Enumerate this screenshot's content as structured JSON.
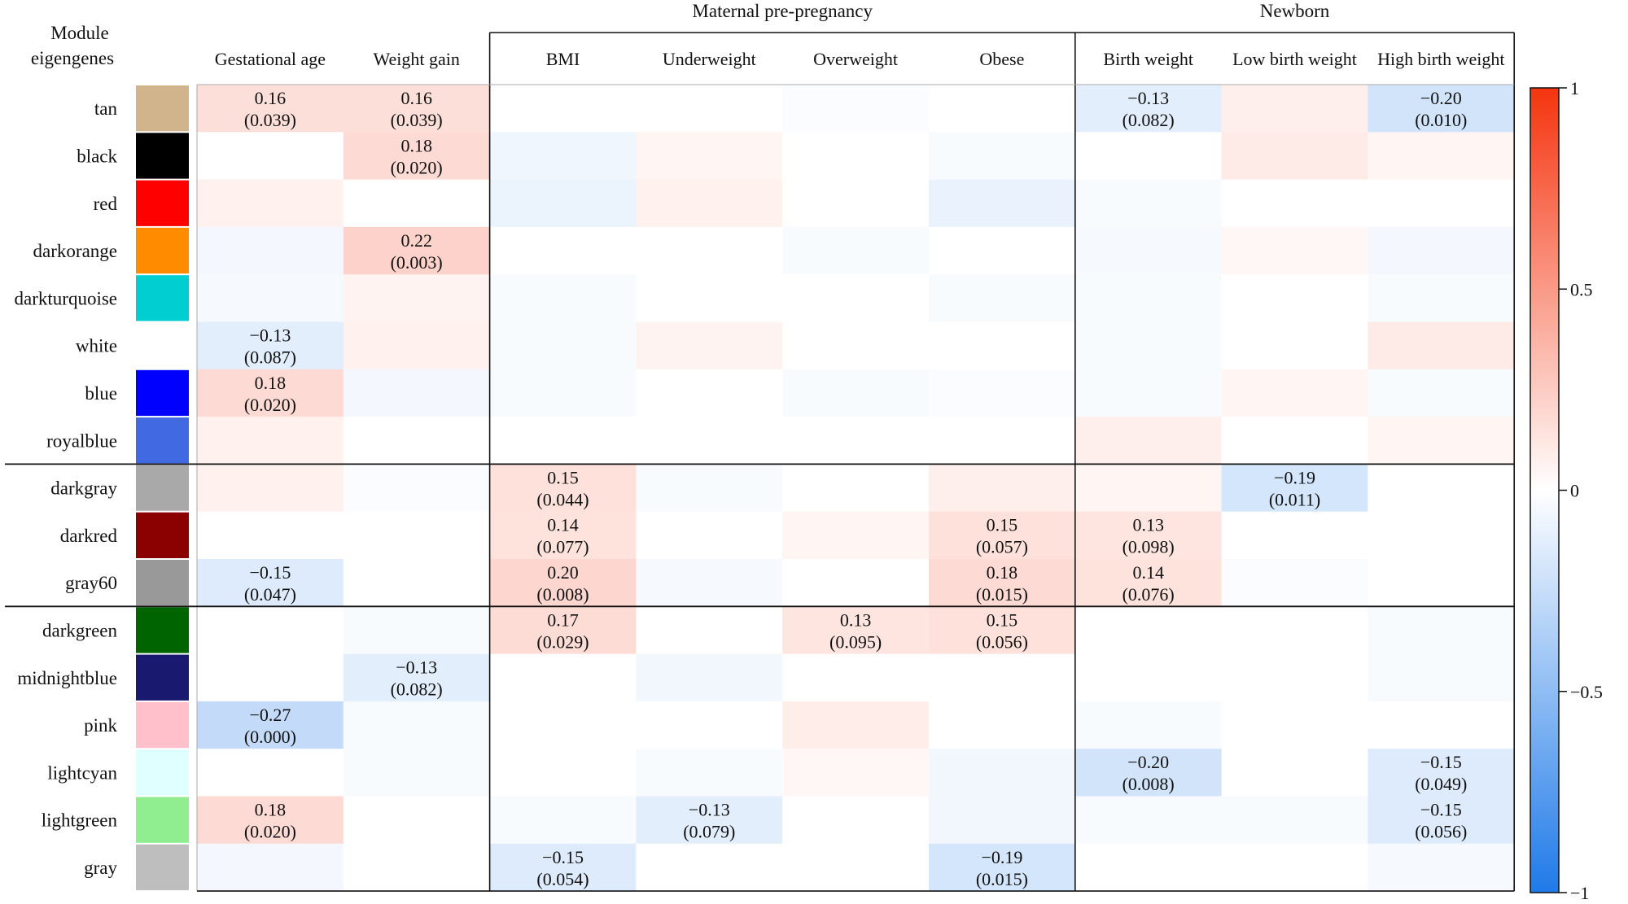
{
  "chart_data": {
    "type": "heatmap",
    "y_header": "Module eigengenes",
    "column_groups": [
      {
        "label": "",
        "start": 0,
        "end": 1
      },
      {
        "label": "Maternal pre-pregnancy",
        "start": 2,
        "end": 5
      },
      {
        "label": "Newborn",
        "start": 6,
        "end": 8
      }
    ],
    "columns": [
      "Gestational age",
      "Weight gain",
      "BMI",
      "Underweight",
      "Overweight",
      "Obese",
      "Birth weight",
      "Low birth weight",
      "High birth weight"
    ],
    "row_group_breaks": [
      8,
      11
    ],
    "rows": [
      {
        "label": "tan",
        "color": "#d2b48c",
        "values": [
          0.16,
          0.16,
          0.0,
          0.0,
          -0.02,
          0.0,
          -0.13,
          0.08,
          -0.2
        ]
      },
      {
        "label": "black",
        "color": "#000000",
        "values": [
          0.0,
          0.18,
          -0.07,
          0.05,
          0.0,
          -0.03,
          0.0,
          0.1,
          0.05
        ]
      },
      {
        "label": "red",
        "color": "#ff0000",
        "values": [
          0.07,
          0.0,
          -0.09,
          0.07,
          0.0,
          -0.1,
          -0.03,
          0.0,
          0.0
        ]
      },
      {
        "label": "darkorange",
        "color": "#ff8c00",
        "values": [
          -0.05,
          0.22,
          0.0,
          0.0,
          -0.03,
          0.0,
          -0.04,
          0.04,
          -0.05
        ]
      },
      {
        "label": "darkturquoise",
        "color": "#00ced1",
        "values": [
          -0.04,
          0.06,
          -0.03,
          0.0,
          0.0,
          -0.03,
          -0.03,
          0.0,
          -0.03
        ]
      },
      {
        "label": "white",
        "color": "#ffffff",
        "values": [
          -0.13,
          0.07,
          -0.03,
          0.06,
          0.0,
          0.0,
          -0.03,
          0.0,
          0.1
        ]
      },
      {
        "label": "blue",
        "color": "#0000ff",
        "values": [
          0.18,
          -0.05,
          -0.03,
          0.0,
          -0.03,
          -0.02,
          -0.03,
          0.05,
          -0.03
        ]
      },
      {
        "label": "royalblue",
        "color": "#4169e1",
        "values": [
          0.07,
          0.0,
          0.0,
          0.0,
          0.0,
          0.0,
          0.08,
          0.0,
          0.05
        ]
      },
      {
        "label": "darkgray",
        "color": "#a9a9a9",
        "values": [
          0.07,
          -0.02,
          0.15,
          -0.03,
          0.0,
          0.08,
          0.05,
          -0.19,
          0.0
        ]
      },
      {
        "label": "darkred",
        "color": "#8b0000",
        "values": [
          0.0,
          0.0,
          0.14,
          0.0,
          0.05,
          0.15,
          0.13,
          0.0,
          0.0
        ]
      },
      {
        "label": "gray60",
        "color": "#999999",
        "values": [
          -0.15,
          0.0,
          0.2,
          -0.04,
          0.0,
          0.18,
          0.14,
          -0.02,
          0.0
        ]
      },
      {
        "label": "darkgreen",
        "color": "#006400",
        "values": [
          0.0,
          -0.03,
          0.17,
          0.0,
          0.13,
          0.15,
          0.0,
          0.0,
          -0.03
        ]
      },
      {
        "label": "midnightblue",
        "color": "#191970",
        "values": [
          0.0,
          -0.13,
          0.0,
          -0.06,
          0.0,
          0.0,
          0.0,
          0.0,
          -0.03
        ]
      },
      {
        "label": "pink",
        "color": "#ffc0cb",
        "values": [
          -0.27,
          -0.03,
          0.0,
          0.0,
          0.09,
          0.0,
          -0.03,
          0.0,
          0.0
        ]
      },
      {
        "label": "lightcyan",
        "color": "#e0ffff",
        "values": [
          0.0,
          -0.03,
          0.0,
          -0.03,
          0.04,
          -0.06,
          -0.2,
          0.0,
          -0.15
        ]
      },
      {
        "label": "lightgreen",
        "color": "#90ee90",
        "values": [
          0.18,
          0.0,
          -0.03,
          -0.13,
          0.0,
          -0.06,
          -0.03,
          -0.03,
          -0.15
        ]
      },
      {
        "label": "gray",
        "color": "#bebebe",
        "values": [
          -0.05,
          0.0,
          -0.15,
          0.0,
          0.0,
          -0.19,
          0.0,
          0.0,
          -0.04
        ]
      }
    ],
    "annotations": [
      {
        "row": 0,
        "col": 0,
        "value": "0.16",
        "p": "(0.039)"
      },
      {
        "row": 0,
        "col": 1,
        "value": "0.16",
        "p": "(0.039)"
      },
      {
        "row": 0,
        "col": 6,
        "value": "−0.13",
        "p": "(0.082)"
      },
      {
        "row": 0,
        "col": 8,
        "value": "−0.20",
        "p": "(0.010)"
      },
      {
        "row": 1,
        "col": 1,
        "value": "0.18",
        "p": "(0.020)"
      },
      {
        "row": 3,
        "col": 1,
        "value": "0.22",
        "p": "(0.003)"
      },
      {
        "row": 5,
        "col": 0,
        "value": "−0.13",
        "p": "(0.087)"
      },
      {
        "row": 6,
        "col": 0,
        "value": "0.18",
        "p": "(0.020)"
      },
      {
        "row": 8,
        "col": 2,
        "value": "0.15",
        "p": "(0.044)"
      },
      {
        "row": 8,
        "col": 7,
        "value": "−0.19",
        "p": "(0.011)"
      },
      {
        "row": 9,
        "col": 2,
        "value": "0.14",
        "p": "(0.077)"
      },
      {
        "row": 9,
        "col": 5,
        "value": "0.15",
        "p": "(0.057)"
      },
      {
        "row": 9,
        "col": 6,
        "value": "0.13",
        "p": "(0.098)"
      },
      {
        "row": 10,
        "col": 0,
        "value": "−0.15",
        "p": "(0.047)"
      },
      {
        "row": 10,
        "col": 2,
        "value": "0.20",
        "p": "(0.008)"
      },
      {
        "row": 10,
        "col": 5,
        "value": "0.18",
        "p": "(0.015)"
      },
      {
        "row": 10,
        "col": 6,
        "value": "0.14",
        "p": "(0.076)"
      },
      {
        "row": 11,
        "col": 2,
        "value": "0.17",
        "p": "(0.029)"
      },
      {
        "row": 11,
        "col": 4,
        "value": "0.13",
        "p": "(0.095)"
      },
      {
        "row": 11,
        "col": 5,
        "value": "0.15",
        "p": "(0.056)"
      },
      {
        "row": 12,
        "col": 1,
        "value": "−0.13",
        "p": "(0.082)"
      },
      {
        "row": 13,
        "col": 0,
        "value": "−0.27",
        "p": "(0.000)"
      },
      {
        "row": 14,
        "col": 6,
        "value": "−0.20",
        "p": "(0.008)"
      },
      {
        "row": 14,
        "col": 8,
        "value": "−0.15",
        "p": "(0.049)"
      },
      {
        "row": 15,
        "col": 0,
        "value": "0.18",
        "p": "(0.020)"
      },
      {
        "row": 15,
        "col": 3,
        "value": "−0.13",
        "p": "(0.079)"
      },
      {
        "row": 15,
        "col": 8,
        "value": "−0.15",
        "p": "(0.056)"
      },
      {
        "row": 16,
        "col": 2,
        "value": "−0.15",
        "p": "(0.054)"
      },
      {
        "row": 16,
        "col": 5,
        "value": "−0.19",
        "p": "(0.015)"
      }
    ],
    "colorbar": {
      "range": [
        -1,
        1
      ],
      "ticks": [
        1,
        0.5,
        0,
        -0.5,
        -1
      ],
      "tick_labels": [
        "1",
        "0.5",
        "0",
        "−0.5",
        "−1"
      ],
      "low_color": "#1f7ae8",
      "mid_color": "#ffffff",
      "high_color": "#f5340f"
    }
  }
}
